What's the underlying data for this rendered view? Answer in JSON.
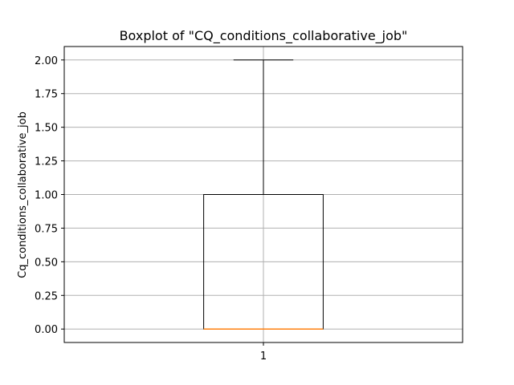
{
  "chart_data": {
    "type": "box",
    "title": "Boxplot of \"CQ_conditions_collaborative_job\"",
    "xlabel": "",
    "ylabel": "Cq_conditions_collaborative_job",
    "categories": [
      "1"
    ],
    "boxes": [
      {
        "category": "1",
        "whisker_low": 0.0,
        "q1": 0.0,
        "median": 0.0,
        "q3": 1.0,
        "whisker_high": 2.0
      }
    ],
    "yticks": [
      "0.00",
      "0.25",
      "0.50",
      "0.75",
      "1.00",
      "1.25",
      "1.50",
      "1.75",
      "2.00"
    ],
    "ylim": [
      -0.1,
      2.1
    ],
    "grid": true,
    "colors": {
      "box": "#000000",
      "median": "#ff7f0e",
      "grid": "#b0b0b0"
    }
  }
}
